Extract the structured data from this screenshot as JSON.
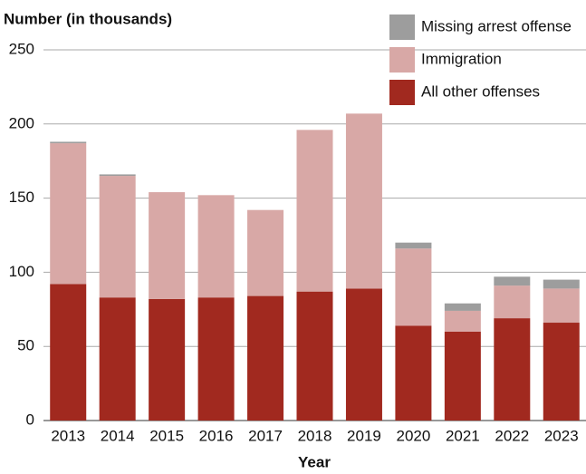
{
  "chart_data": {
    "type": "stacked_bar",
    "y_axis_label": "Number (in thousands)",
    "x_axis_label": "Year",
    "categories": [
      "2013",
      "2014",
      "2015",
      "2016",
      "2017",
      "2018",
      "2019",
      "2020",
      "2021",
      "2022",
      "2023"
    ],
    "series": [
      {
        "name": "All other offenses",
        "color": "#a1291f",
        "values": [
          92,
          83,
          82,
          83,
          84,
          87,
          89,
          64,
          60,
          69,
          66
        ]
      },
      {
        "name": "Immigration",
        "color": "#d8a8a6",
        "values": [
          95,
          82,
          72,
          69,
          58,
          109,
          118,
          52,
          14,
          22,
          23
        ]
      },
      {
        "name": "Missing arrest offense",
        "color": "#9d9d9d",
        "values": [
          1,
          1,
          0,
          0,
          0,
          0,
          0,
          4,
          5,
          6,
          6
        ]
      }
    ],
    "ylim": [
      0,
      250
    ],
    "yticks": [
      0,
      50,
      100,
      150,
      200,
      250
    ],
    "grid": true,
    "legend": "top-right"
  }
}
